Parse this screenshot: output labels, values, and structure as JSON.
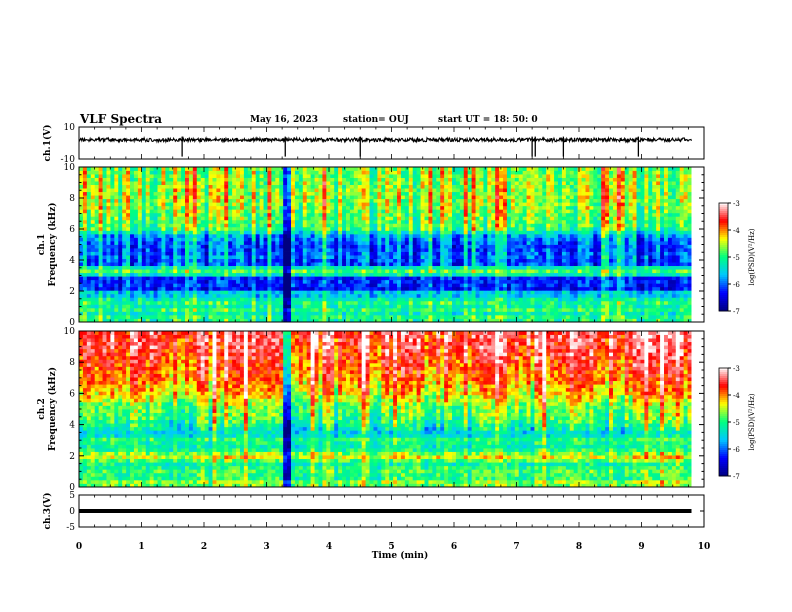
{
  "header": {
    "title": "VLF Spectra",
    "date": "May 16, 2023",
    "station": "station= OUJ",
    "start": "start  UT =   18: 50: 0"
  },
  "colors": {
    "colormap": [
      "#000080",
      "#0000ff",
      "#00c8ff",
      "#00ff80",
      "#ffff00",
      "#ff0000",
      "#ffffff"
    ],
    "trace": "#000000"
  },
  "chart_data": [
    {
      "type": "line",
      "panel": "ch1-waveform",
      "ylabel": "ch.1(V)",
      "ylim": [
        -10,
        10
      ],
      "yticks": [
        10,
        -10
      ],
      "baseline": 0,
      "spike_times_min": [
        1.65,
        3.3,
        4.5,
        7.25,
        7.3,
        7.75,
        8.95
      ]
    },
    {
      "type": "heatmap",
      "panel": "ch1-spectrogram",
      "ylabel_top": "ch.1",
      "ylabel": "Frequency (kHz)",
      "ylim": [
        0,
        10
      ],
      "yticks": [
        0,
        2,
        4,
        6,
        8,
        10
      ],
      "colorbar": {
        "label": "log(PSD)(V²/Hz)",
        "range": [
          -7,
          -3
        ],
        "ticks": [
          "-3",
          "-4",
          "-5",
          "-6",
          "-7"
        ]
      },
      "frequency_profile_kHz": [
        [
          0,
          -5.2
        ],
        [
          0.3,
          -4.9
        ],
        [
          0.5,
          -5.6
        ],
        [
          0.7,
          -4.6
        ],
        [
          0.9,
          -5.4
        ],
        [
          1.2,
          -5.0
        ],
        [
          1.5,
          -5.3
        ],
        [
          1.8,
          -5.8
        ],
        [
          2.0,
          -5.5
        ],
        [
          2.2,
          -6.6
        ],
        [
          2.5,
          -6.1
        ],
        [
          2.8,
          -6.5
        ],
        [
          3.2,
          -4.7
        ],
        [
          3.5,
          -5.2
        ],
        [
          3.8,
          -6.3
        ],
        [
          4.2,
          -6.0
        ],
        [
          4.8,
          -6.2
        ],
        [
          5.5,
          -5.9
        ],
        [
          6.0,
          -5.0
        ],
        [
          7.0,
          -4.8
        ],
        [
          8.0,
          -4.6
        ],
        [
          9.0,
          -4.7
        ],
        [
          10.0,
          -4.8
        ]
      ]
    },
    {
      "type": "heatmap",
      "panel": "ch2-spectrogram",
      "ylabel_top": "ch.2",
      "ylabel": "Frequency (kHz)",
      "ylim": [
        0,
        10
      ],
      "yticks": [
        0,
        2,
        4,
        6,
        8,
        10
      ],
      "colorbar": {
        "label": "log(PSD)(V²/Hz)",
        "range": [
          -7,
          -3
        ],
        "ticks": [
          "-3",
          "-4",
          "-5",
          "-6",
          "-7"
        ]
      },
      "frequency_profile_kHz": [
        [
          0,
          -4.9
        ],
        [
          0.3,
          -4.6
        ],
        [
          0.6,
          -5.1
        ],
        [
          1.0,
          -4.9
        ],
        [
          1.5,
          -5.2
        ],
        [
          2.0,
          -4.3
        ],
        [
          2.3,
          -5.0
        ],
        [
          2.7,
          -5.3
        ],
        [
          3.0,
          -4.9
        ],
        [
          3.4,
          -5.6
        ],
        [
          3.8,
          -5.3
        ],
        [
          4.5,
          -4.9
        ],
        [
          5.2,
          -4.8
        ],
        [
          6.0,
          -4.3
        ],
        [
          7.0,
          -4.0
        ],
        [
          8.0,
          -3.8
        ],
        [
          9.0,
          -3.6
        ],
        [
          10.0,
          -3.5
        ]
      ]
    },
    {
      "type": "line",
      "panel": "ch3-waveform",
      "ylabel": "ch.3(V)",
      "ylim": [
        -5,
        5
      ],
      "yticks": [
        5,
        0,
        -5
      ],
      "baseline": 0
    }
  ],
  "xaxis": {
    "label": "Time (min)",
    "range": [
      0,
      10
    ],
    "ticks": [
      "0",
      "1",
      "2",
      "3",
      "4",
      "5",
      "6",
      "7",
      "8",
      "9",
      "10"
    ],
    "data_end_min": 9.8,
    "disturbance_min": 3.33
  }
}
